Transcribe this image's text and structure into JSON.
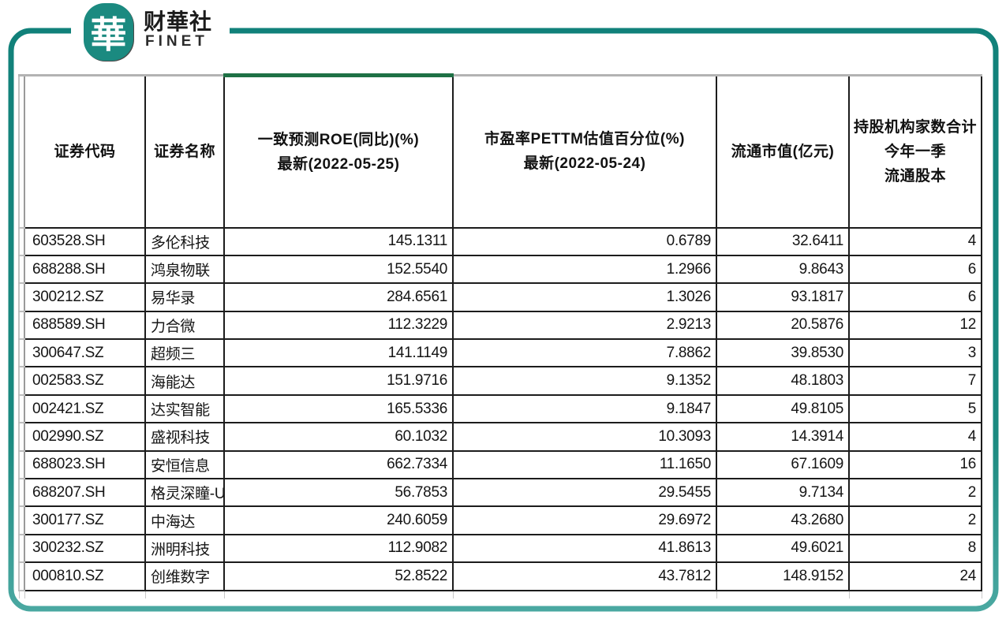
{
  "logo": {
    "mark": "華",
    "name_cn": "财華社",
    "name_en": "FINET"
  },
  "colors": {
    "brand_teal": "#1b8a80",
    "frame_teal_dark": "#11817a",
    "frame_teal_light": "#6fbdb7",
    "column_accent_green": "#1e7145",
    "grid_dark": "#1c1c1c",
    "grid_gray": "#b3b3b3"
  },
  "header": {
    "code": "证券代码",
    "name": "证券名称",
    "roe_line1": "一致预测ROE(同比)(%)",
    "roe_line2": "最新(2022-05-25)",
    "pettm_line1": "市盈率PETTM估值百分位(%)",
    "pettm_line2": "最新(2022-05-24)",
    "mcap": "流通市值(亿元)",
    "inst_line1": "持股机构家数合计",
    "inst_line2": "今年一季",
    "inst_line3": "流通股本"
  },
  "chart_data": {
    "type": "table",
    "columns": [
      "证券代码",
      "证券名称",
      "一致预测ROE(同比)(%) 最新(2022-05-25)",
      "市盈率PETTM估值百分位(%) 最新(2022-05-24)",
      "流通市值(亿元)",
      "持股机构家数合计 今年一季 流通股本"
    ],
    "rows": [
      [
        "603528.SH",
        "多伦科技",
        "145.1311",
        "0.6789",
        "32.6411",
        "4"
      ],
      [
        "688288.SH",
        "鸿泉物联",
        "152.5540",
        "1.2966",
        "9.8643",
        "6"
      ],
      [
        "300212.SZ",
        "易华录",
        "284.6561",
        "1.3026",
        "93.1817",
        "6"
      ],
      [
        "688589.SH",
        "力合微",
        "112.3229",
        "2.9213",
        "20.5876",
        "12"
      ],
      [
        "300647.SZ",
        "超频三",
        "141.1149",
        "7.8862",
        "39.8530",
        "3"
      ],
      [
        "002583.SZ",
        "海能达",
        "151.9716",
        "9.1352",
        "48.1803",
        "7"
      ],
      [
        "002421.SZ",
        "达实智能",
        "165.5336",
        "9.1847",
        "49.8105",
        "5"
      ],
      [
        "002990.SZ",
        "盛视科技",
        "60.1032",
        "10.3093",
        "14.3914",
        "4"
      ],
      [
        "688023.SH",
        "安恒信息",
        "662.7334",
        "11.1650",
        "67.1609",
        "16"
      ],
      [
        "688207.SH",
        "格灵深瞳-U",
        "56.7853",
        "29.5455",
        "9.7134",
        "2"
      ],
      [
        "300177.SZ",
        "中海达",
        "240.6059",
        "29.6972",
        "43.2680",
        "2"
      ],
      [
        "300232.SZ",
        "洲明科技",
        "112.9082",
        "41.8613",
        "49.6021",
        "8"
      ],
      [
        "000810.SZ",
        "创维数字",
        "52.8522",
        "43.7812",
        "148.9152",
        "24"
      ]
    ]
  }
}
